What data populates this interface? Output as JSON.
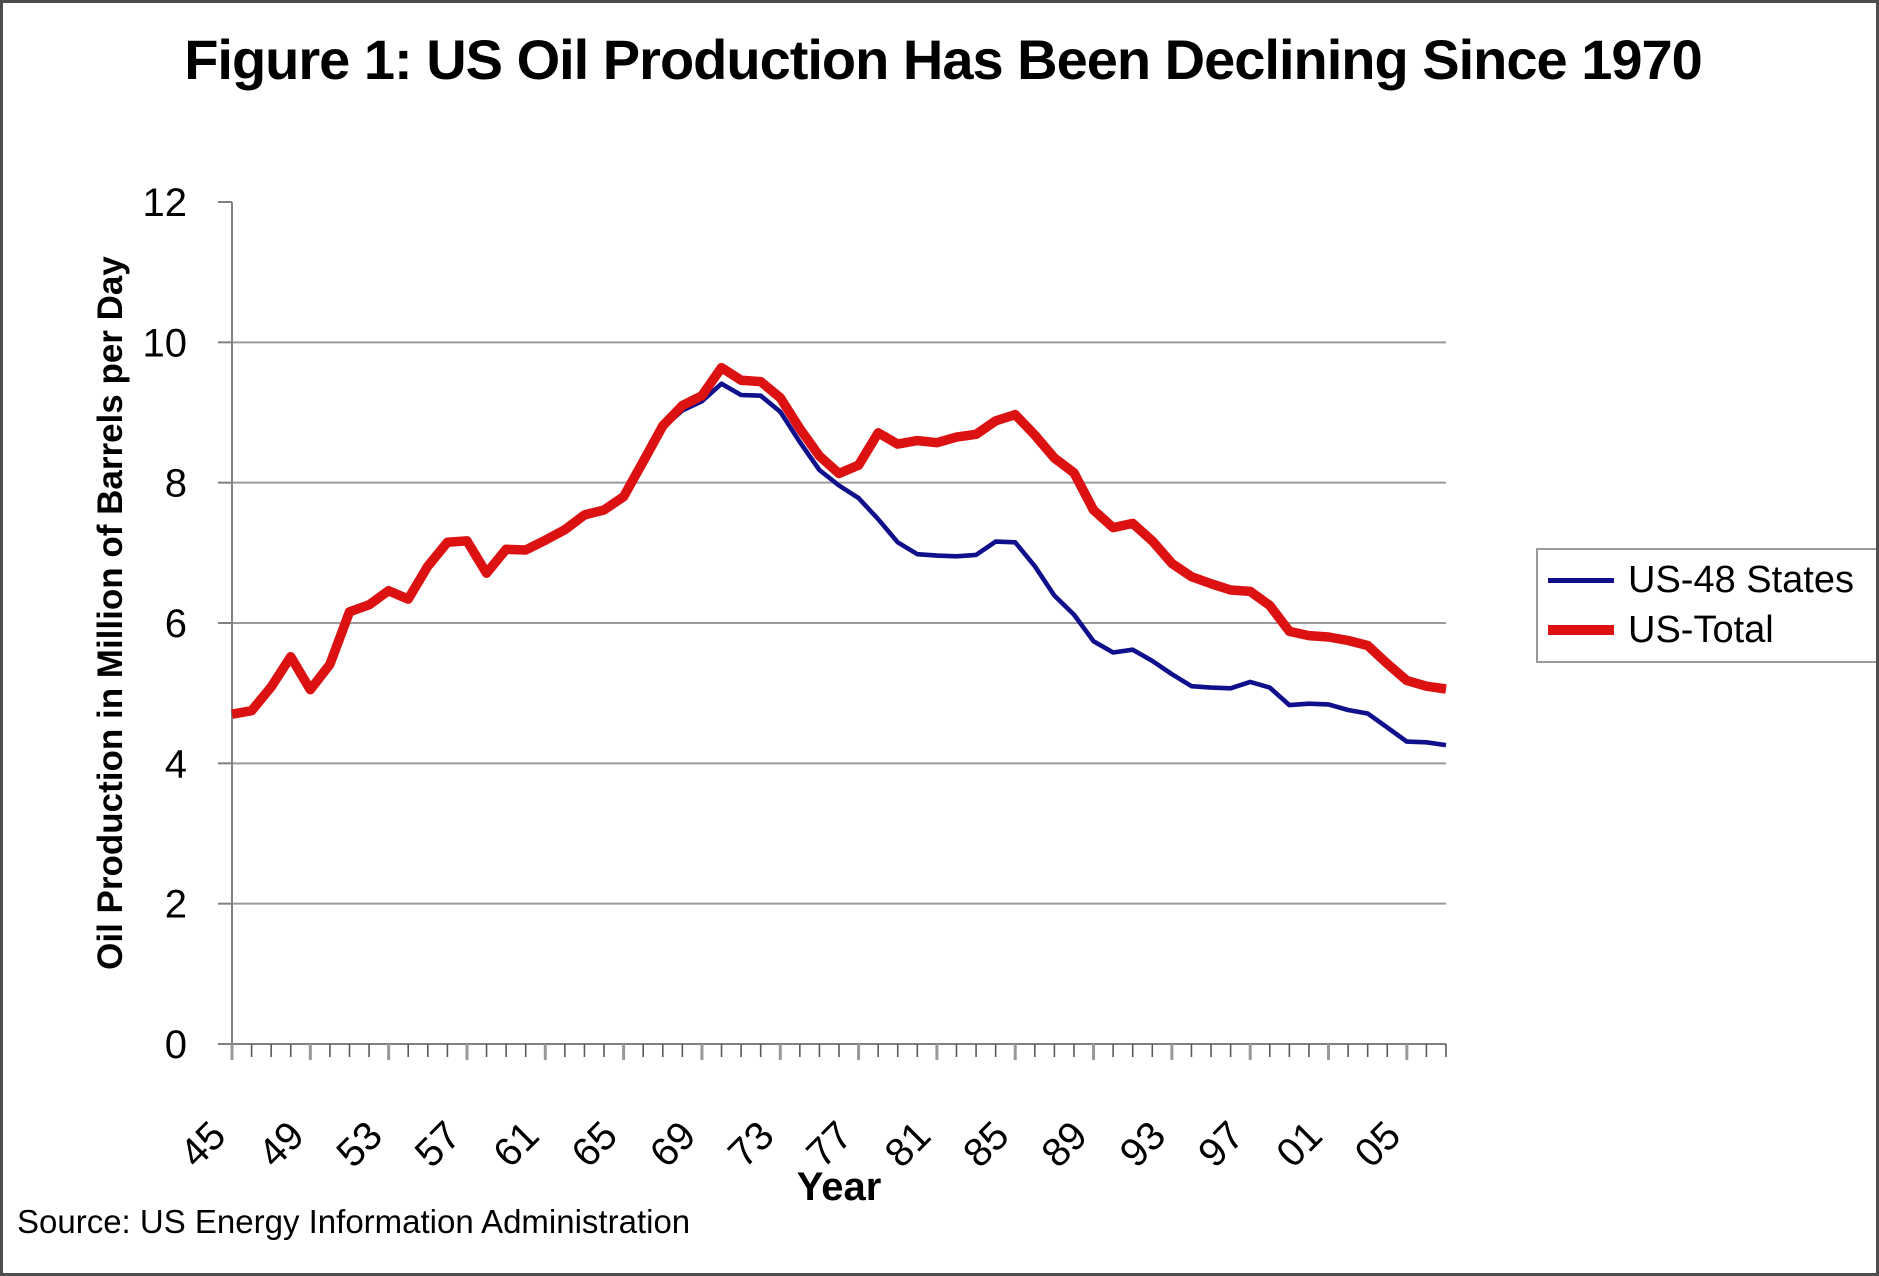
{
  "title": "Figure 1: US Oil Production Has Been Declining Since 1970",
  "source_note": "Source: US Energy Information Administration",
  "colors": {
    "us48_line": "#10108C",
    "us_total_line": "#DC1111",
    "gridline": "#9a9a9a",
    "axis": "#808080"
  },
  "chart_data": {
    "type": "line",
    "title": "Figure 1: US Oil Production Has Been Declining Since 1970",
    "xlabel": "Year",
    "ylabel": "Oil Production in Million of Barrels per Day",
    "ylim": [
      0,
      12
    ],
    "y_tick_step": 2,
    "y_tick_values": [
      0,
      2,
      4,
      6,
      8,
      10,
      12
    ],
    "grid": "horizontal",
    "legend_position": "right",
    "x_years": [
      1945,
      1946,
      1947,
      1948,
      1949,
      1950,
      1951,
      1952,
      1953,
      1954,
      1955,
      1956,
      1957,
      1958,
      1959,
      1960,
      1961,
      1962,
      1963,
      1964,
      1965,
      1966,
      1967,
      1968,
      1969,
      1970,
      1971,
      1972,
      1973,
      1974,
      1975,
      1976,
      1977,
      1978,
      1979,
      1980,
      1981,
      1982,
      1983,
      1984,
      1985,
      1986,
      1987,
      1988,
      1989,
      1990,
      1991,
      1992,
      1993,
      1994,
      1995,
      1996,
      1997,
      1998,
      1999,
      2000,
      2001,
      2002,
      2003,
      2004,
      2005,
      2006,
      2007
    ],
    "x_tick_years": [
      1945,
      1949,
      1953,
      1957,
      1961,
      1965,
      1969,
      1973,
      1977,
      1981,
      1985,
      1989,
      1993,
      1997,
      2001,
      2005
    ],
    "x_tick_labels": [
      "45",
      "49",
      "53",
      "57",
      "61",
      "65",
      "69",
      "73",
      "77",
      "81",
      "85",
      "89",
      "93",
      "97",
      "01",
      "05"
    ],
    "series": [
      {
        "name": "US-48 States",
        "color": "#10108C",
        "line_width": 4.6,
        "values": [
          4.7,
          4.75,
          5.09,
          5.52,
          5.05,
          5.41,
          6.16,
          6.26,
          6.46,
          6.34,
          6.81,
          7.15,
          7.17,
          6.71,
          7.05,
          7.03,
          7.17,
          7.32,
          7.53,
          7.6,
          7.79,
          8.28,
          8.78,
          9.03,
          9.16,
          9.41,
          9.25,
          9.24,
          9.01,
          8.58,
          8.18,
          7.96,
          7.78,
          7.48,
          7.15,
          6.98,
          6.96,
          6.95,
          6.97,
          7.16,
          7.15,
          6.81,
          6.39,
          6.12,
          5.74,
          5.58,
          5.62,
          5.46,
          5.27,
          5.1,
          5.08,
          5.07,
          5.16,
          5.08,
          4.83,
          4.85,
          4.84,
          4.76,
          4.71,
          4.51,
          4.31,
          4.3,
          4.26
        ]
      },
      {
        "name": "US-Total",
        "color": "#DC1111",
        "line_width": 9.5,
        "values": [
          4.7,
          4.75,
          5.09,
          5.52,
          5.05,
          5.41,
          6.16,
          6.26,
          6.46,
          6.34,
          6.81,
          7.15,
          7.17,
          6.71,
          7.05,
          7.04,
          7.18,
          7.33,
          7.54,
          7.61,
          7.8,
          8.3,
          8.81,
          9.1,
          9.24,
          9.64,
          9.46,
          9.44,
          9.21,
          8.77,
          8.38,
          8.13,
          8.25,
          8.71,
          8.55,
          8.6,
          8.57,
          8.65,
          8.69,
          8.88,
          8.97,
          8.68,
          8.35,
          8.14,
          7.61,
          7.36,
          7.42,
          7.17,
          6.85,
          6.66,
          6.56,
          6.47,
          6.45,
          6.25,
          5.88,
          5.82,
          5.8,
          5.75,
          5.68,
          5.42,
          5.18,
          5.1,
          5.06
        ]
      }
    ]
  }
}
